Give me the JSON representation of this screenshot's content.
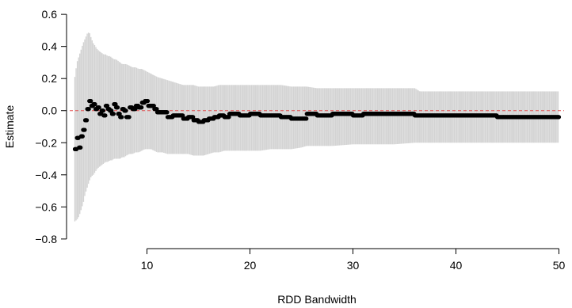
{
  "chart_data": {
    "type": "scatter",
    "title": "",
    "xlabel": "RDD Bandwidth",
    "ylabel": "Estimate",
    "xlim": [
      2.5,
      50.5
    ],
    "ylim": [
      -0.85,
      0.65
    ],
    "x_ticks": [
      10,
      20,
      30,
      40,
      50
    ],
    "x_tick_labels": [
      "10",
      "20",
      "30",
      "40",
      "50"
    ],
    "y_ticks": [
      -0.8,
      -0.6,
      -0.4,
      -0.2,
      0.0,
      0.2,
      0.4,
      0.6
    ],
    "y_tick_labels": [
      "−0.8",
      "−0.6",
      "−0.4",
      "−0.2",
      "0.0",
      "0.2",
      "0.4",
      "0.6"
    ],
    "grid": false,
    "reference_line": {
      "y": 0.0,
      "style": "dashed",
      "color": "#e05050"
    },
    "ci_color": "#d3d3d3",
    "point_color": "#000000",
    "series": [
      {
        "kind": "estimate_with_ci",
        "x": [
          3.0,
          3.2,
          3.4,
          3.6,
          3.8,
          4.0,
          4.2,
          4.4,
          4.6,
          4.8,
          5.0,
          5.2,
          5.4,
          5.6,
          5.8,
          6.0,
          6.2,
          6.4,
          6.6,
          6.8,
          7.0,
          7.2,
          7.4,
          7.6,
          7.8,
          8.0,
          8.3,
          8.6,
          8.9,
          9.2,
          9.5,
          9.8,
          10.1,
          10.4,
          10.7,
          11.0,
          11.5,
          12.0,
          12.5,
          13.0,
          13.5,
          14.0,
          14.5,
          15.0,
          15.5,
          16.0,
          16.5,
          17.0,
          17.5,
          18.0,
          19.0,
          20.0,
          21.0,
          22.0,
          23.0,
          24.0,
          25.0,
          25.5,
          26.5,
          28.0,
          30.0,
          31.0,
          32.0,
          34.0,
          36.0,
          36.5,
          38.0,
          40.0,
          42.0,
          43.5,
          44.0,
          46.0,
          48.0,
          50.0
        ],
        "y": [
          -0.24,
          -0.17,
          -0.23,
          -0.16,
          -0.12,
          -0.06,
          0.01,
          0.06,
          0.03,
          0.04,
          0.01,
          0.02,
          -0.02,
          0.0,
          -0.03,
          0.03,
          0.01,
          0.0,
          -0.02,
          0.04,
          0.02,
          -0.02,
          -0.04,
          0.01,
          0.0,
          -0.04,
          0.02,
          0.01,
          0.03,
          0.02,
          0.05,
          0.06,
          0.03,
          0.03,
          0.01,
          -0.01,
          -0.01,
          -0.04,
          -0.03,
          -0.03,
          -0.05,
          -0.04,
          -0.06,
          -0.07,
          -0.06,
          -0.05,
          -0.04,
          -0.03,
          -0.04,
          -0.02,
          -0.03,
          -0.02,
          -0.03,
          -0.03,
          -0.04,
          -0.05,
          -0.05,
          -0.02,
          -0.03,
          -0.02,
          -0.03,
          -0.02,
          -0.02,
          -0.02,
          -0.03,
          -0.03,
          -0.03,
          -0.03,
          -0.03,
          -0.03,
          -0.04,
          -0.04,
          -0.04,
          -0.04
        ],
        "ci_low": [
          -0.69,
          -0.68,
          -0.66,
          -0.62,
          -0.58,
          -0.52,
          -0.48,
          -0.44,
          -0.41,
          -0.4,
          -0.38,
          -0.36,
          -0.35,
          -0.34,
          -0.33,
          -0.32,
          -0.32,
          -0.31,
          -0.31,
          -0.3,
          -0.3,
          -0.3,
          -0.3,
          -0.29,
          -0.29,
          -0.28,
          -0.27,
          -0.27,
          -0.26,
          -0.26,
          -0.25,
          -0.24,
          -0.24,
          -0.24,
          -0.25,
          -0.26,
          -0.26,
          -0.27,
          -0.27,
          -0.27,
          -0.27,
          -0.27,
          -0.28,
          -0.28,
          -0.28,
          -0.27,
          -0.26,
          -0.26,
          -0.25,
          -0.25,
          -0.25,
          -0.25,
          -0.25,
          -0.24,
          -0.24,
          -0.24,
          -0.23,
          -0.22,
          -0.22,
          -0.22,
          -0.21,
          -0.21,
          -0.21,
          -0.21,
          -0.2,
          -0.2,
          -0.2,
          -0.2,
          -0.2,
          -0.2,
          -0.2,
          -0.2,
          -0.2,
          -0.2
        ],
        "ci_high": [
          0.21,
          0.3,
          0.34,
          0.38,
          0.42,
          0.45,
          0.48,
          0.49,
          0.45,
          0.42,
          0.4,
          0.38,
          0.37,
          0.36,
          0.35,
          0.35,
          0.34,
          0.34,
          0.33,
          0.32,
          0.32,
          0.31,
          0.3,
          0.29,
          0.29,
          0.29,
          0.28,
          0.27,
          0.27,
          0.26,
          0.26,
          0.25,
          0.24,
          0.23,
          0.22,
          0.21,
          0.2,
          0.19,
          0.18,
          0.17,
          0.16,
          0.16,
          0.16,
          0.15,
          0.15,
          0.15,
          0.15,
          0.16,
          0.16,
          0.16,
          0.16,
          0.16,
          0.16,
          0.16,
          0.16,
          0.15,
          0.15,
          0.15,
          0.14,
          0.14,
          0.14,
          0.14,
          0.14,
          0.14,
          0.14,
          0.12,
          0.12,
          0.12,
          0.12,
          0.12,
          0.12,
          0.12,
          0.12,
          0.12
        ]
      }
    ]
  }
}
